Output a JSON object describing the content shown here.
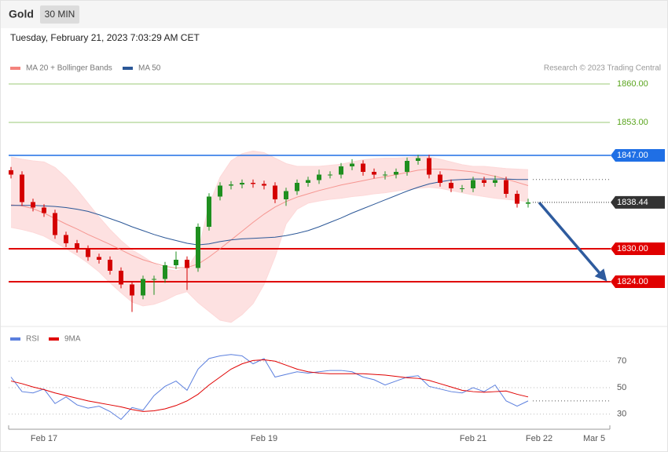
{
  "chart_data": {
    "type": "candlestick",
    "title": "Gold",
    "timeframe": "30 MIN",
    "date": "Tuesday, February 21, 2023 7:03:29 AM CET",
    "source": "Research © 2023 Trading Central",
    "categories": [
      null,
      null,
      null,
      "Feb 17",
      null,
      null,
      null,
      null,
      null,
      null,
      null,
      null,
      null,
      null,
      null,
      null,
      null,
      null,
      null,
      null,
      null,
      null,
      null,
      "Feb 19",
      null,
      null,
      null,
      null,
      null,
      null,
      null,
      null,
      null,
      null,
      null,
      null,
      null,
      null,
      null,
      null,
      null,
      null,
      "Feb 21",
      null,
      null,
      null,
      null,
      null,
      "Feb 22",
      null,
      null,
      null,
      null,
      "Mar 5",
      null
    ],
    "open": [
      1844.3,
      1843.5,
      1838.5,
      1837.5,
      1836.5,
      1832.5,
      1831,
      1830,
      1828.5,
      1828,
      1826,
      1823.5,
      1821.5,
      1824.5,
      1824.5,
      1827,
      1828,
      1826.5,
      1834,
      1839.5,
      1841.5,
      1841.7,
      1842,
      1841.8,
      1841.5,
      1839,
      1840.5,
      1842,
      1842.5,
      1843.5,
      1843.5,
      1845,
      1845.5,
      1844,
      1843.5,
      1843.5,
      1844,
      1846,
      1846.5,
      1843.5,
      1842,
      1841,
      1841,
      1842.5,
      1842,
      1842.5,
      1840,
      1838.2,
      null,
      null,
      null,
      null,
      null,
      null,
      null
    ],
    "high": [
      1844.9,
      1844.1,
      1839.1,
      1838.1,
      1837.1,
      1833.1,
      1831.6,
      1830.6,
      1829.1,
      1828.6,
      1826.6,
      1824.1,
      1825.1,
      1825.1,
      1827.6,
      1829.5,
      1828.6,
      1834.6,
      1840.1,
      1842.1,
      1842.3,
      1842.6,
      1842.6,
      1842.4,
      1842.1,
      1841.1,
      1842.6,
      1843.1,
      1844.4,
      1844.1,
      1845.6,
      1846.3,
      1846.1,
      1844.6,
      1844.1,
      1844.6,
      1846.6,
      1847.1,
      1847.1,
      1844.1,
      1842.6,
      1841.6,
      1843.1,
      1843.1,
      1843.3,
      1843.1,
      1840.6,
      1839.1,
      null,
      null,
      null,
      null,
      null,
      null,
      null
    ],
    "low": [
      1842.8,
      1837.8,
      1836.8,
      1835.8,
      1831.8,
      1830.3,
      1829.3,
      1827.8,
      1827.3,
      1825.3,
      1822.8,
      1818.5,
      1820.8,
      1821.6,
      1823.8,
      1826.3,
      1822.5,
      1825.8,
      1833.3,
      1838.8,
      1840.8,
      1841,
      1841.1,
      1840.8,
      1838.3,
      1837.8,
      1839.8,
      1841.3,
      1841.8,
      1842.8,
      1842.8,
      1844.3,
      1843.3,
      1842.8,
      1842.6,
      1842.8,
      1843.3,
      1845.3,
      1842.8,
      1841.3,
      1840.3,
      1840.3,
      1840.3,
      1841.3,
      1841.3,
      1839.3,
      1837.5,
      1837.5,
      null,
      null,
      null,
      null,
      null,
      null,
      null
    ],
    "close": [
      1843.5,
      1838.5,
      1837.5,
      1836.5,
      1832.5,
      1831,
      1830,
      1828.5,
      1828,
      1826,
      1823.5,
      1821.5,
      1824.5,
      1824.5,
      1827,
      1828,
      1826.5,
      1834,
      1839.5,
      1841.5,
      1841.7,
      1842,
      1841.8,
      1841.5,
      1839,
      1840.5,
      1842,
      1842.5,
      1843.5,
      1843.5,
      1845,
      1845.5,
      1844,
      1843.5,
      1843.5,
      1844,
      1846,
      1846.5,
      1843.5,
      1842,
      1841,
      1841,
      1842.5,
      1842,
      1842.5,
      1840,
      1838.2,
      1838.44,
      null,
      null,
      null,
      null,
      null,
      null,
      null
    ],
    "up_color": "#1f8f1f",
    "down_color": "#d40000",
    "ylim": [
      1816,
      1862
    ],
    "overlays": [
      {
        "name": "MA 20 + Bollinger Bands",
        "color": "#f4837d",
        "band_color": "#fdd9d9",
        "values": [
          1838,
          1837.8,
          1837.3,
          1836.5,
          1835.5,
          1834.5,
          1833.6,
          1832.6,
          1831.7,
          1830.8,
          1829.8,
          1828.8,
          1828,
          1827.4,
          1826.8,
          1826.5,
          1826.6,
          1827.2,
          1828.5,
          1830,
          1831.6,
          1833.2,
          1834.8,
          1836.3,
          1837.6,
          1838.6,
          1839.4,
          1840,
          1840.6,
          1841.1,
          1841.6,
          1842,
          1842.4,
          1842.8,
          1843.1,
          1843.5,
          1843.9,
          1844.3,
          1844.5,
          1844.5,
          1844.4,
          1844.2,
          1844,
          1843.6,
          1843.2,
          1842.7,
          1842.1,
          1841.5,
          null,
          null,
          null,
          null,
          null,
          null,
          null
        ],
        "upper": [
          1846.7,
          1846.3,
          1846,
          1845.8,
          1844.8,
          1843,
          1840.8,
          1838.3,
          1835.8,
          1833.5,
          1831.5,
          1829.8,
          1828.6,
          1827.3,
          1826.3,
          1826,
          1826.5,
          1829.5,
          1838,
          1843,
          1846,
          1847.3,
          1847.8,
          1847.5,
          1846.5,
          1845.5,
          1845,
          1845,
          1845,
          1845.2,
          1845.4,
          1845.8,
          1846.2,
          1846.4,
          1846.5,
          1846.5,
          1846.6,
          1846.8,
          1846.7,
          1846.3,
          1845.8,
          1845.3,
          1845,
          1845,
          1844.8,
          1844.6,
          1844.5,
          1844.4,
          null,
          null,
          null,
          null,
          null,
          null,
          null
        ],
        "lower": [
          1833.9,
          1833.5,
          1833,
          1832.3,
          1831.2,
          1830,
          1828.8,
          1827.4,
          1825.8,
          1823.8,
          1822,
          1820.3,
          1819.6,
          1819.9,
          1820.6,
          1821.6,
          1822.2,
          1820.2,
          1818.6,
          1817,
          1816.6,
          1818,
          1820,
          1823.5,
          1828.5,
          1834.5,
          1837.2,
          1838.3,
          1838.7,
          1839,
          1839.2,
          1839.5,
          1839.7,
          1840,
          1840.2,
          1840.5,
          1840.8,
          1841,
          1841.2,
          1841,
          1840.6,
          1840.2,
          1839.8,
          1839.5,
          1839.2,
          1839,
          1838.8,
          1838.6,
          null,
          null,
          null,
          null,
          null,
          null,
          null
        ]
      },
      {
        "name": "MA 50",
        "color": "#2b5797",
        "values": [
          1837.9,
          1837.9,
          1837.9,
          1837.8,
          1837.7,
          1837.5,
          1837.2,
          1836.8,
          1836.2,
          1835.5,
          1834.8,
          1834,
          1833.3,
          1832.6,
          1832,
          1831.5,
          1831,
          1830.7,
          1830.9,
          1831.3,
          1831.6,
          1831.8,
          1831.9,
          1832,
          1832.1,
          1832.4,
          1832.8,
          1833.3,
          1834,
          1834.8,
          1835.6,
          1836.5,
          1837.3,
          1838.1,
          1838.9,
          1839.7,
          1840.5,
          1841.2,
          1841.8,
          1842.2,
          1842.5,
          1842.6,
          1842.7,
          1842.7,
          1842.7,
          1842.7,
          1842.6,
          1842.6,
          null,
          null,
          null,
          null,
          null,
          null,
          null
        ]
      }
    ],
    "levels": [
      {
        "value": 1860,
        "label": "1860.00",
        "color": "#5aa51e",
        "tag": false
      },
      {
        "value": 1853,
        "label": "1853.00",
        "color": "#5aa51e",
        "tag": false
      },
      {
        "value": 1847,
        "label": "1847.00",
        "color": "#1f6fe5",
        "tag": true
      },
      {
        "value": 1830,
        "label": "1830.00",
        "color": "#e00000",
        "tag": true
      },
      {
        "value": 1824,
        "label": "1824.00",
        "color": "#e00000",
        "tag": true
      }
    ],
    "last_price": {
      "value": 1838.44,
      "label": "1838.44",
      "color": "#333333"
    },
    "indicator": {
      "type": "line",
      "ylim": [
        18,
        82
      ],
      "yticks": [
        70,
        50,
        30
      ],
      "series": [
        {
          "name": "RSI",
          "color": "#5b7fde",
          "values": [
            58,
            47,
            46,
            49,
            38,
            43,
            37,
            34.5,
            36,
            32,
            26,
            35,
            33,
            44,
            51,
            55,
            48,
            64,
            72,
            74,
            75,
            74,
            68,
            72,
            58,
            60,
            62,
            61,
            62,
            63,
            63,
            62,
            58,
            56,
            52,
            55,
            58,
            59,
            51,
            49,
            47,
            46,
            50,
            47,
            52,
            40,
            36,
            40,
            null,
            null,
            null,
            null,
            null,
            null,
            null
          ]
        },
        {
          "name": "9MA",
          "color": "#e00000",
          "values": [
            55,
            53,
            50.5,
            48.5,
            46,
            44,
            42,
            40,
            38.5,
            37,
            35.5,
            33.5,
            32,
            32.5,
            34,
            36.5,
            40,
            45,
            52,
            58,
            64,
            68,
            70.5,
            71,
            70,
            67,
            64,
            62,
            61,
            60.5,
            60.5,
            60.5,
            60.5,
            60,
            59.5,
            58.5,
            57.5,
            57,
            55.5,
            53,
            50.5,
            48,
            47,
            46.5,
            47,
            47.5,
            45,
            43,
            null,
            null,
            null,
            null,
            null,
            null,
            null
          ]
        }
      ]
    }
  }
}
